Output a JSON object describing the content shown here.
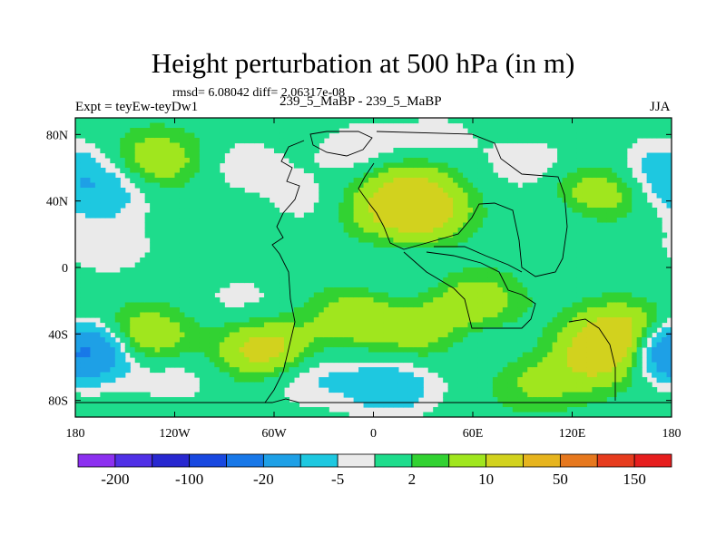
{
  "header": {
    "title": "Height perturbation at 500 hPa (in m)",
    "stats": "rmsd= 6.08042 diff= 2.06317e-08",
    "expt": "Expt = teyEw-teyDw1",
    "cases": "239_5_MaBP - 239_5_MaBP",
    "season": "JJA"
  },
  "chart_data": {
    "type": "heatmap",
    "title": "Height perturbation at 500 hPa (in m)",
    "xlabel": "",
    "ylabel": "",
    "xlim": [
      -180,
      180
    ],
    "ylim": [
      -90,
      90
    ],
    "x_ticks": [
      {
        "value": -180,
        "label": "180"
      },
      {
        "value": -120,
        "label": "120W"
      },
      {
        "value": -60,
        "label": "60W"
      },
      {
        "value": 0,
        "label": "0"
      },
      {
        "value": 60,
        "label": "60E"
      },
      {
        "value": 120,
        "label": "120E"
      },
      {
        "value": 180,
        "label": "180"
      }
    ],
    "y_ticks": [
      {
        "value": 80,
        "label": "80N"
      },
      {
        "value": 40,
        "label": "40N"
      },
      {
        "value": 0,
        "label": "0"
      },
      {
        "value": -40,
        "label": "40S"
      },
      {
        "value": -80,
        "label": "80S"
      }
    ],
    "colorbar": {
      "colors": [
        "#8c30f0",
        "#5030e6",
        "#2828d0",
        "#1848e0",
        "#1878e8",
        "#1ea0e6",
        "#1ec8e0",
        "#eaeaea",
        "#1edc8c",
        "#32d232",
        "#a0e61e",
        "#d2d21e",
        "#e6b41e",
        "#e6781e",
        "#e63c1e",
        "#e61e1e"
      ],
      "labels": [
        {
          "boundary": 1,
          "text": "-200"
        },
        {
          "boundary": 3,
          "text": "-100"
        },
        {
          "boundary": 5,
          "text": "-20"
        },
        {
          "boundary": 7,
          "text": "-5"
        },
        {
          "boundary": 9,
          "text": "2"
        },
        {
          "boundary": 11,
          "text": "10"
        },
        {
          "boundary": 13,
          "text": "50"
        },
        {
          "boundary": 15,
          "text": "150"
        }
      ]
    },
    "field_anomalies": [
      {
        "lon": -130,
        "lat": 65,
        "value": 9
      },
      {
        "lon": -165,
        "lat": 45,
        "value": -8
      },
      {
        "lon": -80,
        "lat": 62,
        "value": -4
      },
      {
        "lon": -5,
        "lat": 70,
        "value": -5
      },
      {
        "lon": 40,
        "lat": 78,
        "value": -3
      },
      {
        "lon": 20,
        "lat": 52,
        "value": 8
      },
      {
        "lon": 5,
        "lat": 35,
        "value": 6
      },
      {
        "lon": 30,
        "lat": 33,
        "value": 13
      },
      {
        "lon": -40,
        "lat": 40,
        "value": -3
      },
      {
        "lon": 95,
        "lat": 62,
        "value": -4
      },
      {
        "lon": 135,
        "lat": 45,
        "value": 9
      },
      {
        "lon": 175,
        "lat": 60,
        "value": -7
      },
      {
        "lon": 110,
        "lat": 30,
        "value": -3
      },
      {
        "lon": -160,
        "lat": 12,
        "value": -4
      },
      {
        "lon": 20,
        "lat": -8,
        "value": -3
      },
      {
        "lon": 60,
        "lat": -20,
        "value": 9
      },
      {
        "lon": -80,
        "lat": -20,
        "value": -3
      },
      {
        "lon": -10,
        "lat": -30,
        "value": 9
      },
      {
        "lon": 30,
        "lat": -40,
        "value": 7
      },
      {
        "lon": -140,
        "lat": -42,
        "value": 12
      },
      {
        "lon": -170,
        "lat": -50,
        "value": -14
      },
      {
        "lon": -65,
        "lat": -50,
        "value": 14
      },
      {
        "lon": -40,
        "lat": -65,
        "value": -6
      },
      {
        "lon": -120,
        "lat": -65,
        "value": -4
      },
      {
        "lon": 10,
        "lat": -72,
        "value": -9
      },
      {
        "lon": 60,
        "lat": -45,
        "value": -3
      },
      {
        "lon": 140,
        "lat": -55,
        "value": 12
      },
      {
        "lon": 150,
        "lat": -40,
        "value": 16
      },
      {
        "lon": 175,
        "lat": -50,
        "value": -14
      },
      {
        "lon": 100,
        "lat": -70,
        "value": 6
      }
    ]
  }
}
